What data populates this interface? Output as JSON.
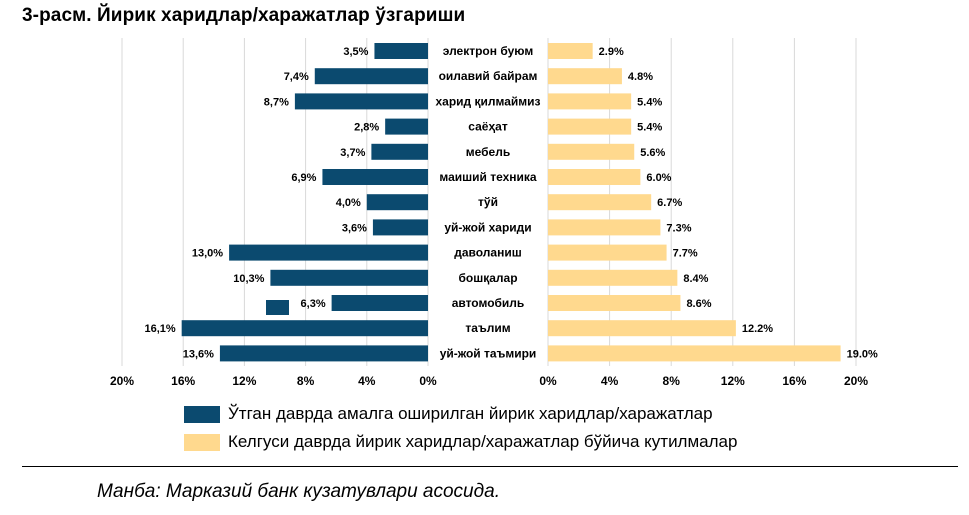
{
  "title": "3-расм. Йирик харидлар/харажатлар ўзгариши",
  "chart_data": {
    "type": "bar",
    "title": "3-расм. Йирик харидлар/харажатлар ўзгариши",
    "categories": [
      "электрон буюм",
      "оилавий байрам",
      "харид қилмаймиз",
      "саёҳат",
      "мебель",
      "маиший техника",
      "тўй",
      "уй-жой хариди",
      "даволаниш",
      "бошқалар",
      "автомобиль",
      "таълим",
      "уй-жой таъмири"
    ],
    "series": [
      {
        "name": "Ўтган даврда амалга оширилган йирик харидлар/харажатлар",
        "values": [
          3.5,
          7.4,
          8.7,
          2.8,
          3.7,
          6.9,
          4.0,
          3.6,
          13.0,
          10.3,
          6.3,
          16.1,
          13.6
        ],
        "labels": [
          "3,5%",
          "7,4%",
          "8,7%",
          "2,8%",
          "3,7%",
          "6,9%",
          "4,0%",
          "3,6%",
          "13,0%",
          "10,3%",
          "6,3%",
          "16,1%",
          "13,6%"
        ]
      },
      {
        "name": "Келгуси даврда йирик харидлар/харажатлар бўйича кутилмалар",
        "values": [
          2.9,
          4.8,
          5.4,
          5.4,
          5.6,
          6.0,
          6.7,
          7.3,
          7.7,
          8.4,
          8.6,
          12.2,
          19.0
        ],
        "labels": [
          "2.9%",
          "4.8%",
          "5.4%",
          "5.4%",
          "5.6%",
          "6.0%",
          "6.7%",
          "7.3%",
          "7.7%",
          "8.4%",
          "8.6%",
          "12.2%",
          "19.0%"
        ]
      }
    ],
    "left_axis": {
      "ticks": [
        "20%",
        "16%",
        "12%",
        "8%",
        "4%",
        "0%"
      ],
      "range": [
        0,
        20
      ]
    },
    "right_axis": {
      "ticks": [
        "0%",
        "4%",
        "8%",
        "12%",
        "16%",
        "20%"
      ],
      "range": [
        0,
        20
      ]
    },
    "grid": "vertical",
    "legend_position": "bottom",
    "colors": {
      "past": "#0b4a6f",
      "future": "#ffd98e",
      "grid": "#d9d9d9"
    }
  },
  "legend": {
    "past": "Ўтган даврда амалга оширилган йирик харидлар/харажатлар",
    "future": "Келгуси даврда йирик харидлар/харажатлар бўйича кутилмалар"
  },
  "source": "Манба: Марказий банк кузатувлари асосида."
}
